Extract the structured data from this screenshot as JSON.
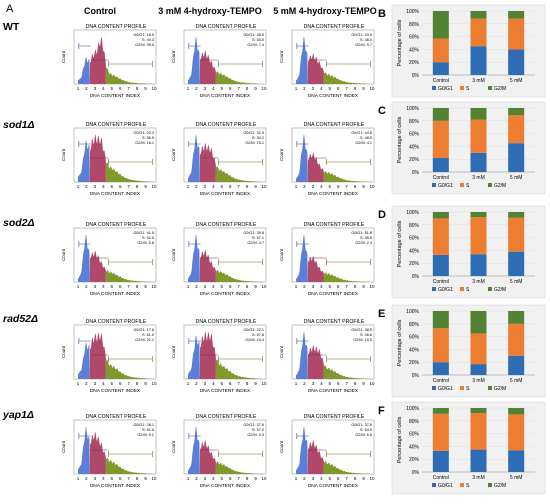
{
  "panel_labels": {
    "a": "A",
    "b": "B",
    "c": "C",
    "d": "D",
    "e": "E",
    "f": "F"
  },
  "column_headers": [
    "Control",
    "3 mM 4-hydroxy-TEMPO",
    "5 mM 4-hydroxy-TEMPO"
  ],
  "strains": [
    "WT",
    "sod1Δ",
    "sod2Δ",
    "rad52Δ",
    "yap1Δ"
  ],
  "histogram": {
    "title": "DNA CONTENT PROFILE",
    "xlabel": "DNA CONTENT INDEX",
    "ylabel": "Count",
    "ticks": [
      "1",
      "2",
      "3",
      "4",
      "5",
      "6",
      "7",
      "8",
      "9",
      "10"
    ]
  },
  "stats": [
    [
      [
        "G0/G1: 18.5",
        "S: 40.3",
        "G2/M: 39.5"
      ],
      [
        "G0/G1: 38.5",
        "S: 53.0",
        "G2/M: 7.4"
      ],
      [
        "G0/G1: 43.5",
        "S: 46.0",
        "G2/M: 9.7"
      ]
    ],
    [
      [
        "G0/G1: 20.3",
        "S: 56.5",
        "G2/M: 18.1"
      ],
      [
        "G0/G1: 31.9",
        "S: 50.2",
        "G2/M: 15.1"
      ],
      [
        "G0/G1: 44.5",
        "S: 48.5",
        "G2/M: 4.1"
      ]
    ],
    [
      [
        "G0/G1: 41.5",
        "S: 52.5",
        "G2/M: 5.8"
      ],
      [
        "G0/G1: 39.8",
        "S: 57.1",
        "G2/M: 4.7"
      ],
      [
        "G0/G1: 51.8",
        "S: 45.5",
        "G2/M: 2.3"
      ]
    ],
    [
      [
        "G0/G1: 17.6",
        "S: 61.0",
        "G2/M: 21.1"
      ],
      [
        "G0/G1: 22.1",
        "S: 57.8",
        "G2/M: 19.4"
      ],
      [
        "G0/G1: 38.5",
        "S: 46.6",
        "G2/M: 15.5"
      ]
    ],
    [
      [
        "G0/G1: 28.1",
        "S: 61.6",
        "G2/M: 9.2"
      ],
      [
        "G0/G1: 37.6",
        "S: 57.2",
        "G2/M: 5.3"
      ],
      [
        "G0/G1: 37.5",
        "S: 54.5",
        "G2/M: 6.6"
      ]
    ]
  ],
  "bar_axis": {
    "ylabel": "Percentage of cells",
    "yticks": [
      "0%",
      "20%",
      "40%",
      "60%",
      "80%",
      "100%"
    ],
    "categories": [
      "Control",
      "3 mM",
      "5 mM"
    ],
    "legend": [
      "G0/G1",
      "S",
      "G2/M"
    ]
  },
  "colors": {
    "G0/G1": "#2e6db4",
    "S": "#ed7d31",
    "G2/M": "#548235",
    "hist_blue": "#5b7fd6",
    "hist_red": "#b0486a",
    "hist_green": "#7f9a2a",
    "panel_grey": "#f1f1f1",
    "purple_text": "#7a2a4a"
  },
  "chart_data": [
    {
      "panel": "B",
      "type": "bar",
      "stacked": true,
      "categories": [
        "Control",
        "3 mM",
        "5 mM"
      ],
      "ylim": [
        0,
        100
      ],
      "series": [
        {
          "name": "G0/G1",
          "values": [
            20,
            45,
            40
          ]
        },
        {
          "name": "S",
          "values": [
            37,
            43,
            48
          ]
        },
        {
          "name": "G2/M",
          "values": [
            43,
            12,
            12
          ]
        }
      ]
    },
    {
      "panel": "C",
      "type": "bar",
      "stacked": true,
      "categories": [
        "Control",
        "3 mM",
        "5 mM"
      ],
      "ylim": [
        0,
        100
      ],
      "series": [
        {
          "name": "G0/G1",
          "values": [
            22,
            30,
            45
          ]
        },
        {
          "name": "S",
          "values": [
            58,
            52,
            44
          ]
        },
        {
          "name": "G2/M",
          "values": [
            20,
            18,
            11
          ]
        }
      ]
    },
    {
      "panel": "D",
      "type": "bar",
      "stacked": true,
      "categories": [
        "Control",
        "3 mM",
        "5 mM"
      ],
      "ylim": [
        0,
        100
      ],
      "series": [
        {
          "name": "G0/G1",
          "values": [
            33,
            34,
            38
          ]
        },
        {
          "name": "S",
          "values": [
            57,
            58,
            53
          ]
        },
        {
          "name": "G2/M",
          "values": [
            10,
            8,
            9
          ]
        }
      ]
    },
    {
      "panel": "E",
      "type": "bar",
      "stacked": true,
      "categories": [
        "Control",
        "3 mM",
        "5 mM"
      ],
      "ylim": [
        0,
        100
      ],
      "series": [
        {
          "name": "G0/G1",
          "values": [
            20,
            17,
            30
          ]
        },
        {
          "name": "S",
          "values": [
            53,
            48,
            50
          ]
        },
        {
          "name": "G2/M",
          "values": [
            27,
            35,
            20
          ]
        }
      ]
    },
    {
      "panel": "F",
      "type": "bar",
      "stacked": true,
      "categories": [
        "Control",
        "3 mM",
        "5 mM"
      ],
      "ylim": [
        0,
        100
      ],
      "series": [
        {
          "name": "G0/G1",
          "values": [
            33,
            35,
            34
          ]
        },
        {
          "name": "S",
          "values": [
            58,
            57,
            56
          ]
        },
        {
          "name": "G2/M",
          "values": [
            9,
            8,
            10
          ]
        }
      ]
    }
  ]
}
